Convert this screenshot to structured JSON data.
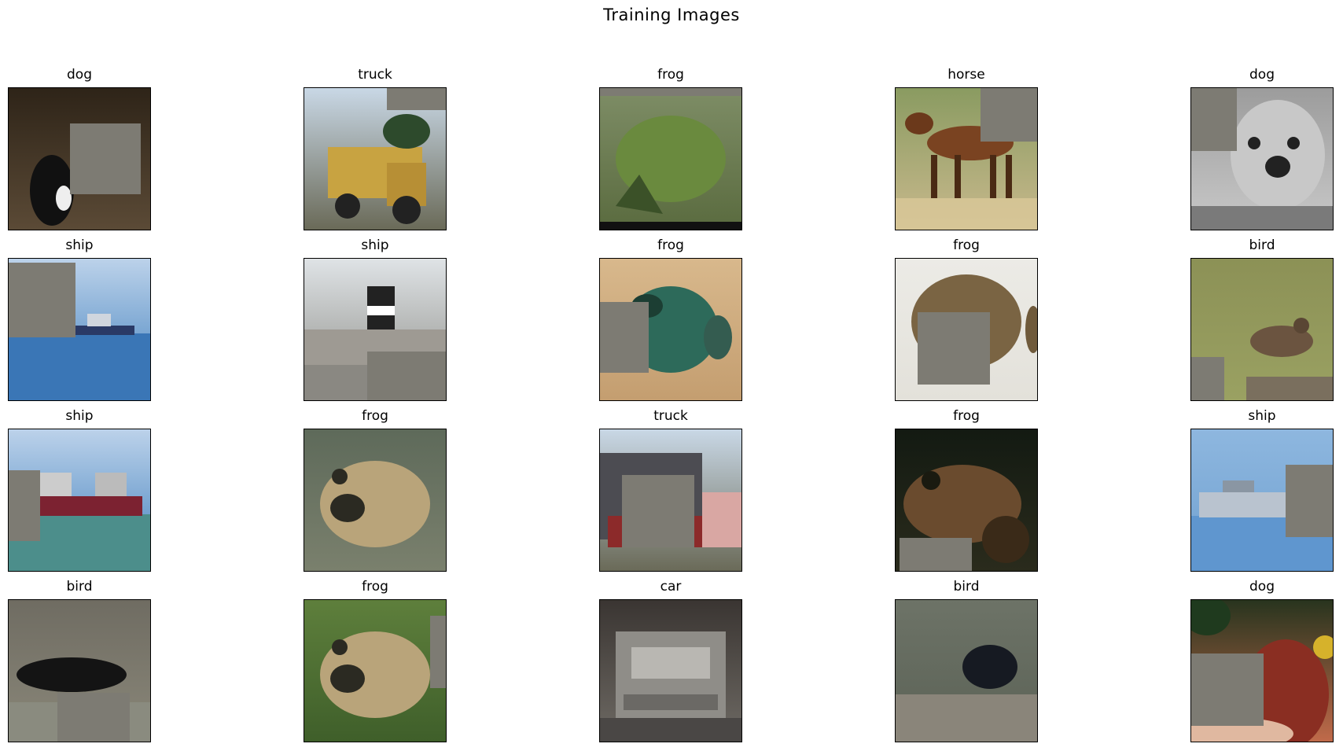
{
  "figure": {
    "title": "Training Images"
  },
  "cutout_color": "#7d7b73",
  "images": [
    {
      "label": "dog",
      "scene": "dark-brown",
      "object": "dog-dark"
    },
    {
      "label": "truck",
      "scene": "sky-road",
      "object": "yellow-truck"
    },
    {
      "label": "frog",
      "scene": "green-grass",
      "object": "green-frog"
    },
    {
      "label": "horse",
      "scene": "field",
      "object": "brown-horse"
    },
    {
      "label": "dog",
      "scene": "grey",
      "object": "grey-dog"
    },
    {
      "label": "ship",
      "scene": "sea-sky",
      "object": "ship-hull"
    },
    {
      "label": "ship",
      "scene": "pale-sky",
      "object": "grey-ship"
    },
    {
      "label": "frog",
      "scene": "tan",
      "object": "teal-frog"
    },
    {
      "label": "frog",
      "scene": "white",
      "object": "brown-blob"
    },
    {
      "label": "bird",
      "scene": "olive",
      "object": "small-bird"
    },
    {
      "label": "ship",
      "scene": "sea-sky",
      "object": "red-ship"
    },
    {
      "label": "frog",
      "scene": "grey-green",
      "object": "tan-frog"
    },
    {
      "label": "truck",
      "scene": "sky-road",
      "object": "red-truck"
    },
    {
      "label": "frog",
      "scene": "dark-green",
      "object": "brown-frog"
    },
    {
      "label": "ship",
      "scene": "light-blue",
      "object": "grey-ship-small"
    },
    {
      "label": "bird",
      "scene": "grey-road",
      "object": "black-bird"
    },
    {
      "label": "frog",
      "scene": "leafy",
      "object": "tan-frog"
    },
    {
      "label": "car",
      "scene": "street",
      "object": "silver-car"
    },
    {
      "label": "bird",
      "scene": "murky",
      "object": "dark-bird"
    },
    {
      "label": "dog",
      "scene": "flowers",
      "object": "brown-dog"
    }
  ]
}
